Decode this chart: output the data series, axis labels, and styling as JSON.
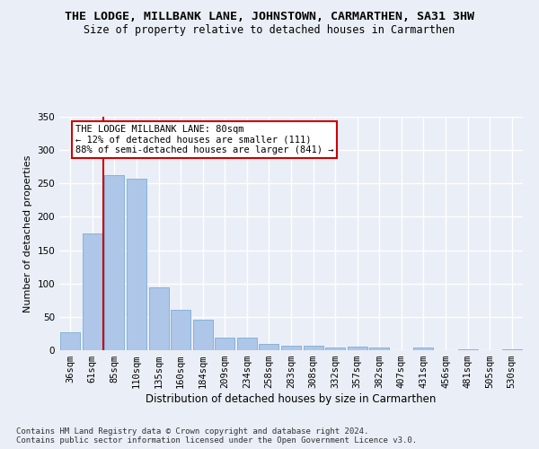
{
  "title": "THE LODGE, MILLBANK LANE, JOHNSTOWN, CARMARTHEN, SA31 3HW",
  "subtitle": "Size of property relative to detached houses in Carmarthen",
  "xlabel": "Distribution of detached houses by size in Carmarthen",
  "ylabel": "Number of detached properties",
  "footer_line1": "Contains HM Land Registry data © Crown copyright and database right 2024.",
  "footer_line2": "Contains public sector information licensed under the Open Government Licence v3.0.",
  "categories": [
    "36sqm",
    "61sqm",
    "85sqm",
    "110sqm",
    "135sqm",
    "160sqm",
    "184sqm",
    "209sqm",
    "234sqm",
    "258sqm",
    "283sqm",
    "308sqm",
    "332sqm",
    "357sqm",
    "382sqm",
    "407sqm",
    "431sqm",
    "456sqm",
    "481sqm",
    "505sqm",
    "530sqm"
  ],
  "values": [
    27,
    175,
    263,
    257,
    94,
    60,
    46,
    19,
    19,
    10,
    7,
    7,
    4,
    5,
    4,
    0,
    4,
    0,
    1,
    0,
    2
  ],
  "bar_color": "#aec6e8",
  "bar_edge_color": "#7aadd4",
  "background_color": "#eaeef6",
  "grid_color": "#ffffff",
  "vline_color": "#cc0000",
  "annotation_text": "THE LODGE MILLBANK LANE: 80sqm\n← 12% of detached houses are smaller (111)\n88% of semi-detached houses are larger (841) →",
  "annotation_box_color": "#ffffff",
  "annotation_box_edge_color": "#cc0000",
  "ylim": [
    0,
    350
  ],
  "yticks": [
    0,
    50,
    100,
    150,
    200,
    250,
    300,
    350
  ],
  "title_fontsize": 9.5,
  "subtitle_fontsize": 8.5,
  "xlabel_fontsize": 8.5,
  "ylabel_fontsize": 8,
  "tick_fontsize": 7.5,
  "annotation_fontsize": 7.5,
  "footer_fontsize": 6.5
}
